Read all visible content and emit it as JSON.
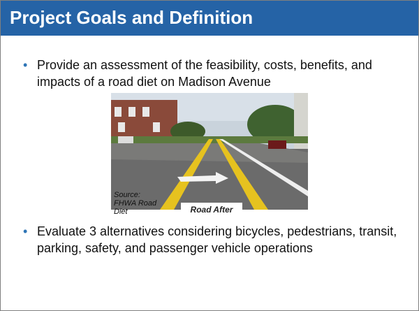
{
  "slide": {
    "title": "Project Goals and Definition",
    "bullets": [
      "Provide an assessment of the feasibility, costs, benefits, and impacts of a road diet on Madison Avenue",
      "Evaluate 3 alternatives considering bicycles, pedestrians, transit, parking, safety, and passenger vehicle operations"
    ],
    "image": {
      "source": "Source: FHWA Road Diet",
      "label": "Road After"
    }
  }
}
